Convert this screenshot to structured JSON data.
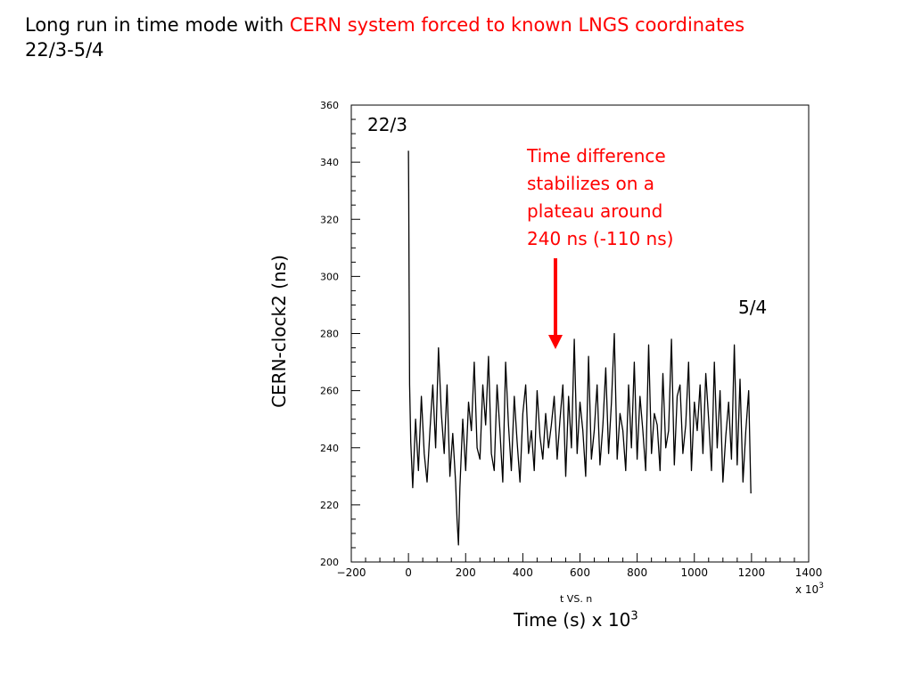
{
  "title": {
    "prefix": "Long run in time mode with ",
    "highlight": "CERN system forced to known LNGS coordinates",
    "line2": "22/3-5/4"
  },
  "chart_data": {
    "type": "line",
    "xlabel": "Time (s) x 10",
    "xlabel_exp": "3",
    "ylabel": "CERN-clock2 (ns)",
    "xlim": [
      -200,
      1400
    ],
    "ylim": [
      200,
      360
    ],
    "x_ticks": [
      -200,
      0,
      200,
      400,
      600,
      800,
      1000,
      1200,
      1400
    ],
    "y_ticks": [
      200,
      220,
      240,
      260,
      280,
      300,
      320,
      340,
      360
    ],
    "x_multiplier": "x 10",
    "x_multiplier_exp": "3",
    "inner_caption": "t VS. n",
    "grid": false,
    "series": [
      {
        "x": [
          0,
          1,
          2,
          4,
          8,
          15,
          25,
          35,
          45,
          55,
          65,
          75,
          85,
          95,
          105,
          115,
          125,
          135,
          145,
          155,
          165,
          170,
          175,
          180,
          190,
          200,
          210,
          220,
          230,
          240,
          250,
          260,
          270,
          280,
          290,
          300,
          310,
          320,
          330,
          340,
          350,
          360,
          370,
          380,
          390,
          400,
          410,
          420,
          430,
          440,
          450,
          460,
          470,
          480,
          490,
          500,
          510,
          520,
          530,
          540,
          550,
          560,
          570,
          580,
          590,
          600,
          610,
          620,
          630,
          640,
          650,
          660,
          670,
          680,
          690,
          700,
          710,
          720,
          730,
          740,
          750,
          760,
          770,
          780,
          790,
          800,
          810,
          820,
          830,
          840,
          850,
          860,
          870,
          880,
          890,
          900,
          910,
          920,
          930,
          940,
          950,
          960,
          970,
          980,
          990,
          1000,
          1010,
          1020,
          1030,
          1040,
          1050,
          1060,
          1070,
          1080,
          1090,
          1100,
          1110,
          1120,
          1130,
          1140,
          1150,
          1160,
          1170,
          1180,
          1190,
          1198
        ],
        "y": [
          344,
          330,
          300,
          262,
          242,
          226,
          250,
          232,
          258,
          238,
          228,
          246,
          262,
          240,
          275,
          252,
          238,
          262,
          230,
          245,
          228,
          215,
          206,
          226,
          250,
          232,
          256,
          246,
          270,
          240,
          236,
          262,
          248,
          272,
          238,
          232,
          262,
          246,
          228,
          270,
          248,
          232,
          258,
          242,
          228,
          252,
          262,
          238,
          246,
          232,
          260,
          244,
          236,
          252,
          240,
          248,
          258,
          236,
          250,
          262,
          230,
          258,
          240,
          278,
          238,
          256,
          246,
          230,
          272,
          236,
          246,
          262,
          234,
          248,
          268,
          238,
          256,
          280,
          236,
          252,
          246,
          232,
          262,
          240,
          270,
          236,
          258,
          246,
          232,
          276,
          238,
          252,
          248,
          232,
          266,
          240,
          246,
          278,
          234,
          258,
          262,
          238,
          248,
          270,
          232,
          256,
          246,
          262,
          238,
          266,
          250,
          232,
          270,
          240,
          260,
          228,
          244,
          256,
          236,
          276,
          234,
          264,
          228,
          246,
          260,
          224
        ]
      }
    ]
  },
  "annotations": {
    "start": "22/3",
    "end": "5/4",
    "note_lines": [
      "Time difference",
      "stabilizes on a",
      "plateau around",
      "240 ns (-110 ns)"
    ],
    "arrow_color": "#ff0000"
  },
  "colors": {
    "highlight": "#ff0000",
    "line": "#000000"
  }
}
